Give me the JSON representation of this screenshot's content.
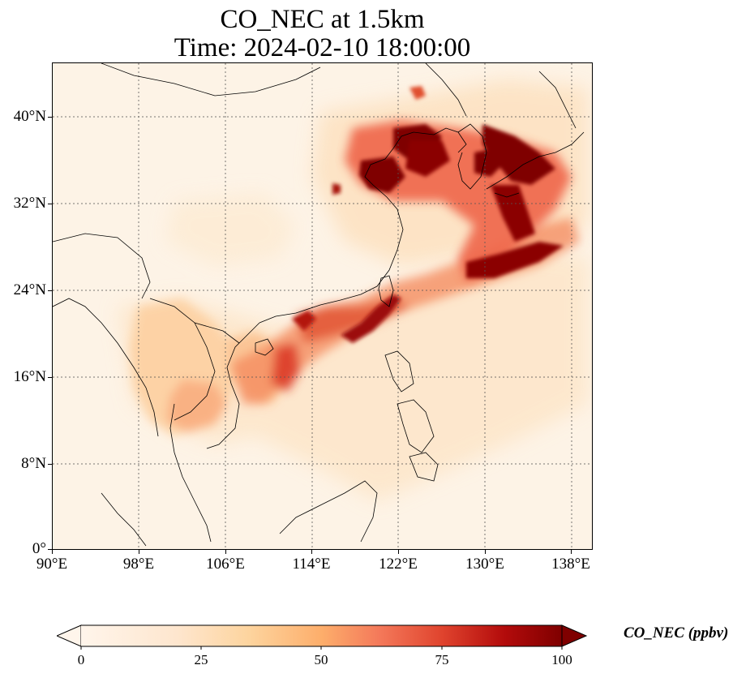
{
  "title": {
    "line1": "CO_NEC at 1.5km",
    "line2": "Time: 2024-02-10 18:00:00"
  },
  "axes": {
    "y_ticks": [
      "40°N",
      "32°N",
      "24°N",
      "16°N",
      "8°N",
      "0°"
    ],
    "x_ticks": [
      "90°E",
      "98°E",
      "106°E",
      "114°E",
      "122°E",
      "130°E",
      "138°E"
    ],
    "lon_range": [
      90,
      140
    ],
    "lat_range": [
      0,
      45
    ],
    "gridlines": "dotted"
  },
  "colorbar": {
    "label": "CO_NEC (ppbv)",
    "ticks": [
      "0",
      "25",
      "50",
      "75",
      "100"
    ],
    "range": [
      0,
      100
    ],
    "extend": "both",
    "colormap": [
      "#fff5eb",
      "#fdd49e",
      "#fdbb84",
      "#fc8d59",
      "#ef6548",
      "#d7301f",
      "#990000",
      "#7f0000"
    ]
  },
  "colors": {
    "background": "#fdf3e6",
    "land_outline": "#000000",
    "high": "#7f0000",
    "medium": "#d7301f",
    "low": "#fdd49e"
  }
}
